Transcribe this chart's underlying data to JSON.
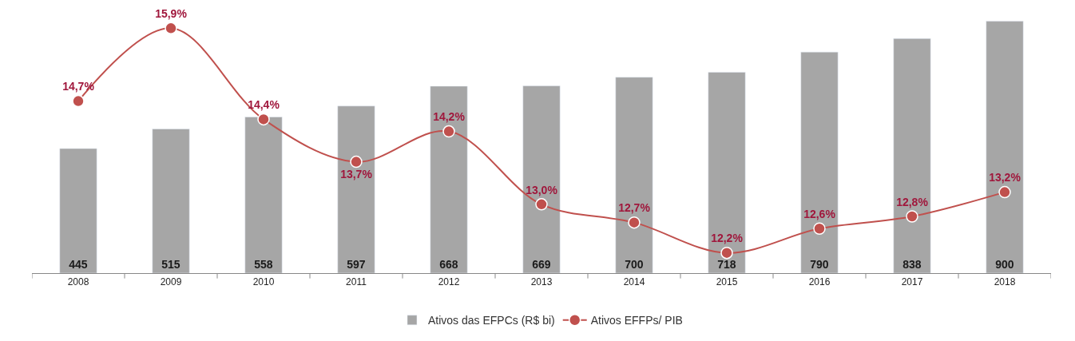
{
  "chart_data": {
    "type": "bar",
    "categories": [
      "2008",
      "2009",
      "2010",
      "2011",
      "2012",
      "2013",
      "2014",
      "2015",
      "2016",
      "2017",
      "2018"
    ],
    "series": [
      {
        "name": "Ativos das EFPCs (R$ bi)",
        "color": "#a6a6a6",
        "values": [
          445,
          515,
          558,
          597,
          668,
          669,
          700,
          718,
          790,
          838,
          900
        ]
      },
      {
        "name": "Ativos EFFPs/ PIB",
        "type": "line",
        "axis": "y2",
        "color": "#c0504d",
        "values": [
          14.7,
          15.9,
          14.4,
          13.7,
          14.2,
          13.0,
          12.7,
          12.2,
          12.6,
          12.8,
          13.2
        ],
        "value_labels": [
          "14,7%",
          "15,9%",
          "14,4%",
          "13,7%",
          "14,2%",
          "13,0%",
          "12,7%",
          "12,2%",
          "12,6%",
          "12,8%",
          "13,2%"
        ]
      }
    ],
    "data_labels": true,
    "tick_labels": "x",
    "marker": "circle",
    "line_style": "solid",
    "legend": "bottom"
  }
}
